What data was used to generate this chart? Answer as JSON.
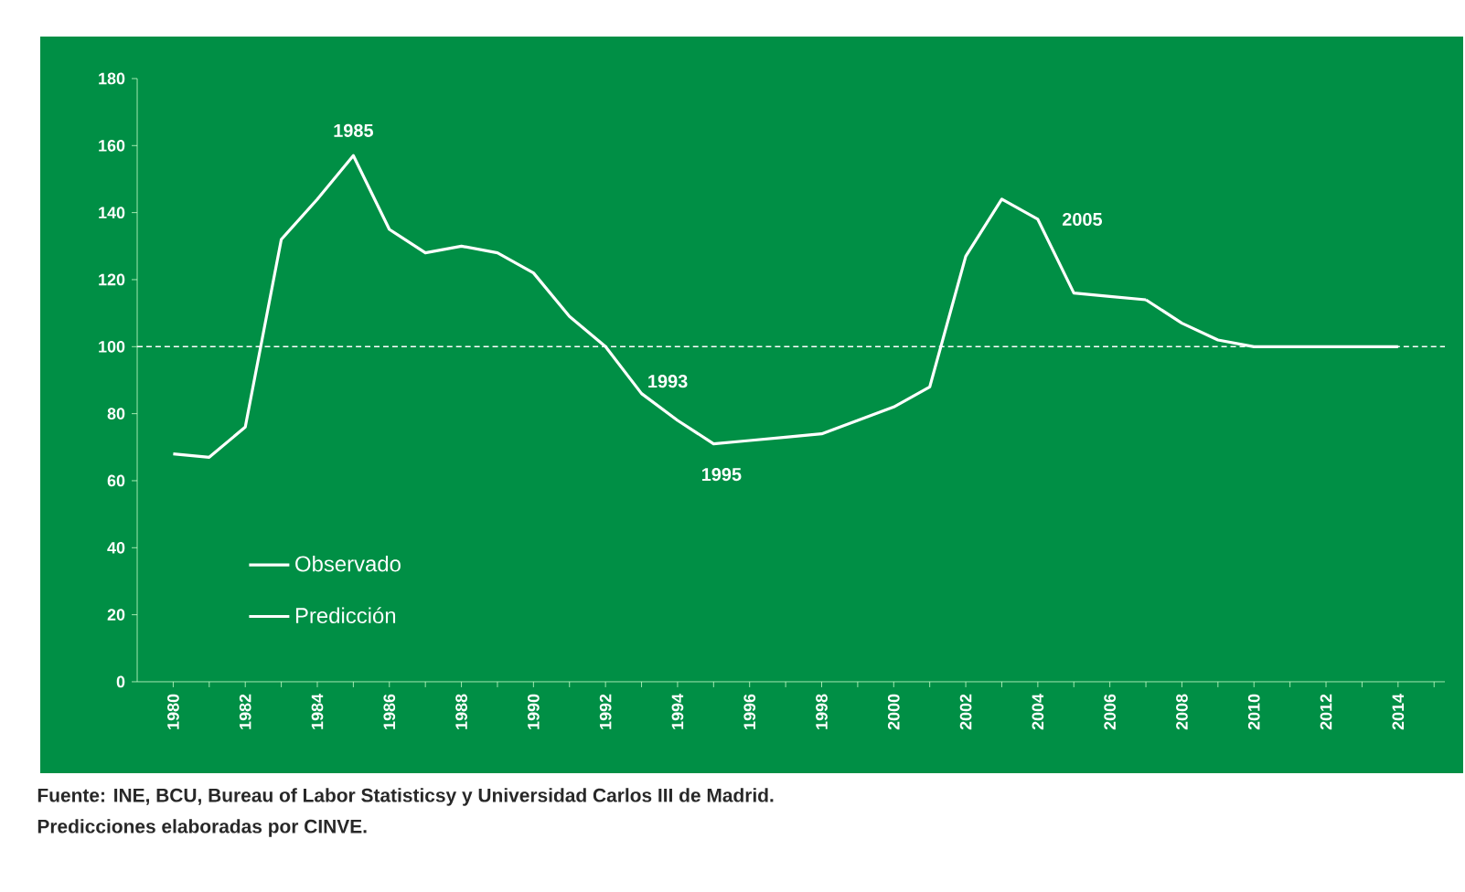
{
  "chart_data": {
    "type": "line",
    "series": [
      {
        "name": "Observado",
        "color": "#ffffff",
        "x": [
          1980,
          1981,
          1982,
          1983,
          1984,
          1985,
          1986,
          1987,
          1988,
          1989,
          1990,
          1991,
          1992,
          1993,
          1994,
          1995,
          1996,
          1997,
          1998,
          1999,
          2000,
          2001,
          2002,
          2003,
          2004,
          2005,
          2006,
          2007
        ],
        "values": [
          68,
          67,
          76,
          132,
          144,
          157,
          135,
          128,
          130,
          128,
          122,
          109,
          100,
          86,
          78,
          71,
          72,
          73,
          74,
          78,
          82,
          88,
          127,
          144,
          138,
          116,
          115,
          114
        ]
      },
      {
        "name": "Predicción",
        "color": "#ffffff",
        "x": [
          2007,
          2008,
          2009,
          2010,
          2011,
          2012,
          2013,
          2014
        ],
        "values": [
          114,
          107,
          102,
          100,
          100,
          100,
          100,
          100
        ]
      }
    ],
    "xlim": [
      1979,
      2015.3
    ],
    "ylim": [
      0,
      180
    ],
    "yticks": [
      0,
      20,
      40,
      60,
      80,
      100,
      120,
      140,
      160,
      180
    ],
    "xticks": [
      {
        "value": 1980,
        "label": "1980"
      },
      {
        "value": 1981,
        "label": null
      },
      {
        "value": 1982,
        "label": "1982"
      },
      {
        "value": 1983,
        "label": null
      },
      {
        "value": 1984,
        "label": "1984"
      },
      {
        "value": 1985,
        "label": null
      },
      {
        "value": 1986,
        "label": "1986"
      },
      {
        "value": 1987,
        "label": null
      },
      {
        "value": 1988,
        "label": "1988"
      },
      {
        "value": 1989,
        "label": null
      },
      {
        "value": 1990,
        "label": "1990"
      },
      {
        "value": 1991,
        "label": null
      },
      {
        "value": 1992,
        "label": "1992"
      },
      {
        "value": 1993,
        "label": null
      },
      {
        "value": 1994,
        "label": "1994"
      },
      {
        "value": 1995,
        "label": null
      },
      {
        "value": 1996,
        "label": "1996"
      },
      {
        "value": 1997,
        "label": null
      },
      {
        "value": 1998,
        "label": "1998"
      },
      {
        "value": 1999,
        "label": null
      },
      {
        "value": 2000,
        "label": "2000"
      },
      {
        "value": 2001,
        "label": null
      },
      {
        "value": 2002,
        "label": "2002"
      },
      {
        "value": 2003,
        "label": null
      },
      {
        "value": 2004,
        "label": "2004"
      },
      {
        "value": 2005,
        "label": null
      },
      {
        "value": 2006,
        "label": "2006"
      },
      {
        "value": 2007,
        "label": null
      },
      {
        "value": 2008,
        "label": "2008"
      },
      {
        "value": 2009,
        "label": null
      },
      {
        "value": 2010,
        "label": "2010"
      },
      {
        "value": 2011,
        "label": null
      },
      {
        "value": 2012,
        "label": "2012"
      },
      {
        "value": 2013,
        "label": null
      },
      {
        "value": 2014,
        "label": "2014"
      },
      {
        "value": 2015,
        "label": null
      }
    ],
    "ref_lines": [
      {
        "axis": "y",
        "value": 100,
        "color": "#ffffff",
        "line_style": "dashed"
      }
    ],
    "annotations": [
      {
        "text": "1985",
        "x": 1985,
        "y": 157
      },
      {
        "text": "1993",
        "x": 1993,
        "y": 86
      },
      {
        "text": "1995",
        "x": 1995,
        "y": 71
      },
      {
        "text": "2005",
        "x": 2004,
        "y": 138
      },
      "Fuente:  INE, BCU, Bureau of Labor Statisticsy y Universidad Carlos III de Madrid.",
      "Predicciones elaboradas por CINVE."
    ],
    "legend": "left",
    "grid": false,
    "marker": "none",
    "line_style": "solid"
  }
}
